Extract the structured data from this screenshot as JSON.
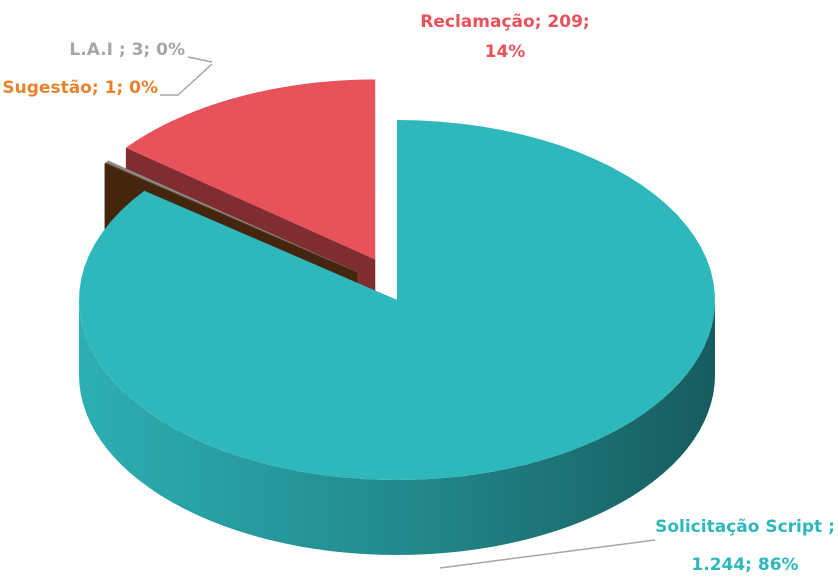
{
  "chart_data": {
    "type": "pie3d",
    "labels": [
      [
        "Solicitação  Script ;",
        "1.244; 86%"
      ],
      [
        "Sugestão; 1; 0%"
      ],
      [
        "L.A.I ; 3; 0%"
      ],
      [
        "Reclamação; 209;",
        "14%"
      ]
    ],
    "values": [
      1244,
      1,
      3,
      209
    ],
    "colors": [
      "#2eb8bc",
      "#7a4618",
      "#8c8c8c",
      "#e8525a"
    ],
    "label_colors": [
      "#2eb8bc",
      "#e8822e",
      "#a6a6a6",
      "#e8525a"
    ]
  }
}
